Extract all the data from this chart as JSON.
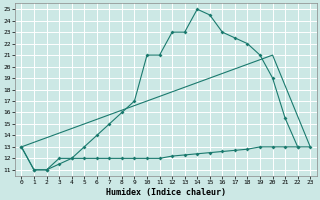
{
  "xlabel": "Humidex (Indice chaleur)",
  "bg_color": "#cce8e5",
  "grid_color": "#b0d8d4",
  "line_color": "#1a7a6e",
  "xlim": [
    -0.5,
    23.5
  ],
  "ylim": [
    10.5,
    25.5
  ],
  "xticks": [
    0,
    1,
    2,
    3,
    4,
    5,
    6,
    7,
    8,
    9,
    10,
    11,
    12,
    13,
    14,
    15,
    16,
    17,
    18,
    19,
    20,
    21,
    22,
    23
  ],
  "yticks": [
    11,
    12,
    13,
    14,
    15,
    16,
    17,
    18,
    19,
    20,
    21,
    22,
    23,
    24,
    25
  ],
  "curve1_x": [
    0,
    1,
    2,
    3,
    4,
    5,
    6,
    7,
    8,
    9,
    10,
    11,
    12,
    13,
    14,
    15,
    16,
    17,
    18,
    19,
    20,
    21,
    22
  ],
  "curve1_y": [
    13,
    11,
    11,
    12,
    12,
    13,
    14,
    15,
    16,
    17,
    21,
    21,
    23,
    23,
    25,
    24.5,
    23,
    22.5,
    22,
    21,
    19,
    15.5,
    13
  ],
  "curve2_x": [
    0,
    20,
    23
  ],
  "curve2_y": [
    13,
    21,
    13
  ],
  "curve3_x": [
    0,
    1,
    2,
    3,
    4,
    5,
    6,
    7,
    8,
    9,
    10,
    11,
    12,
    13,
    14,
    15,
    16,
    17,
    18,
    19,
    20,
    21,
    22,
    23
  ],
  "curve3_y": [
    13,
    11,
    11,
    11.5,
    12,
    12,
    12,
    12,
    12,
    12,
    12,
    12,
    12.2,
    12.3,
    12.4,
    12.5,
    12.6,
    12.7,
    12.8,
    13,
    13,
    13,
    13,
    13
  ]
}
